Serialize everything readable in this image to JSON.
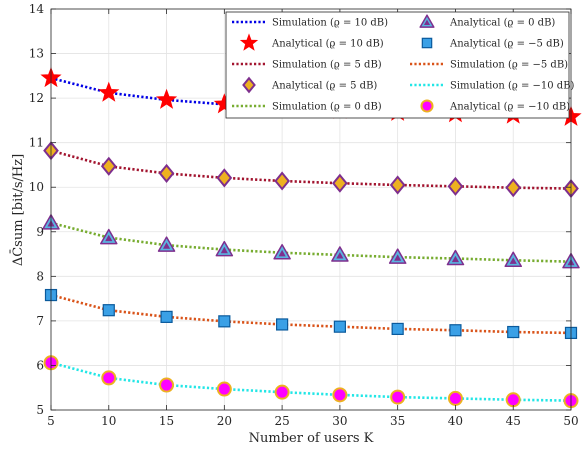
{
  "chart_data": {
    "type": "line",
    "xlabel": "Number of users K",
    "ylabel": "ΔC̄sum [bit/s/Hz]",
    "xlim": [
      5,
      50
    ],
    "ylim": [
      5,
      14
    ],
    "xticks": [
      "5",
      "10",
      "15",
      "20",
      "25",
      "30",
      "35",
      "40",
      "45",
      "50"
    ],
    "yticks": [
      "5",
      "6",
      "7",
      "8",
      "9",
      "10",
      "11",
      "12",
      "13",
      "14"
    ],
    "grid": true,
    "legend_position": "top-right",
    "x": [
      5,
      10,
      15,
      20,
      25,
      30,
      35,
      40,
      45,
      50
    ],
    "series": [
      {
        "name": "Simulation (ϱ = 10 dB)",
        "kind": "line",
        "color": "#0000e6",
        "values": [
          12.45,
          12.12,
          11.96,
          11.86,
          11.79,
          11.74,
          11.69,
          11.66,
          11.63,
          11.58
        ]
      },
      {
        "name": "Analytical (ϱ = 10 dB)",
        "kind": "marker",
        "marker": "star",
        "color": "#ff0000",
        "values": [
          12.45,
          12.12,
          11.96,
          11.86,
          11.79,
          11.74,
          11.69,
          11.66,
          11.63,
          11.58
        ]
      },
      {
        "name": "Simulation (ϱ = 5 dB)",
        "kind": "line",
        "color": "#a2142f",
        "values": [
          10.82,
          10.47,
          10.31,
          10.21,
          10.14,
          10.09,
          10.05,
          10.02,
          9.99,
          9.97
        ]
      },
      {
        "name": "Analytical (ϱ = 5 dB)",
        "kind": "marker",
        "marker": "diamond",
        "color": "#edb120",
        "edge": "#7e2f8e",
        "values": [
          10.82,
          10.47,
          10.31,
          10.21,
          10.14,
          10.09,
          10.05,
          10.02,
          9.99,
          9.97
        ]
      },
      {
        "name": "Simulation (ϱ = 0 dB)",
        "kind": "line",
        "color": "#77ac30",
        "values": [
          9.2,
          8.87,
          8.7,
          8.6,
          8.53,
          8.48,
          8.43,
          8.4,
          8.36,
          8.33
        ]
      },
      {
        "name": "Analytical (ϱ = 0 dB)",
        "kind": "marker",
        "marker": "triangle",
        "color": "#5ab4e0",
        "edge": "#7e2f8e",
        "values": [
          9.2,
          8.87,
          8.7,
          8.6,
          8.53,
          8.48,
          8.43,
          8.4,
          8.36,
          8.33
        ]
      },
      {
        "name": "Simulation (ϱ = −5 dB)",
        "kind": "line",
        "color": "#d95319",
        "values": [
          7.58,
          7.24,
          7.09,
          6.99,
          6.92,
          6.87,
          6.82,
          6.79,
          6.75,
          6.73
        ]
      },
      {
        "name": "Analytical (ϱ = −5 dB)",
        "kind": "marker",
        "marker": "square",
        "color": "#3aa0e6",
        "edge": "#0a5a9c",
        "values": [
          7.58,
          7.24,
          7.09,
          6.99,
          6.92,
          6.87,
          6.82,
          6.79,
          6.75,
          6.73
        ]
      },
      {
        "name": "Simulation (ϱ = −10 dB)",
        "kind": "line",
        "color": "#22e6e6",
        "values": [
          6.06,
          5.72,
          5.56,
          5.47,
          5.4,
          5.34,
          5.29,
          5.26,
          5.23,
          5.21
        ]
      },
      {
        "name": "Analytical (ϱ = −10 dB)",
        "kind": "marker",
        "marker": "circle",
        "color": "#ff00ff",
        "edge": "#edb120",
        "values": [
          6.06,
          5.72,
          5.56,
          5.47,
          5.4,
          5.34,
          5.29,
          5.26,
          5.23,
          5.21
        ]
      }
    ],
    "legend_order": [
      0,
      5,
      1,
      7,
      2,
      6,
      3,
      8,
      4,
      9
    ]
  }
}
